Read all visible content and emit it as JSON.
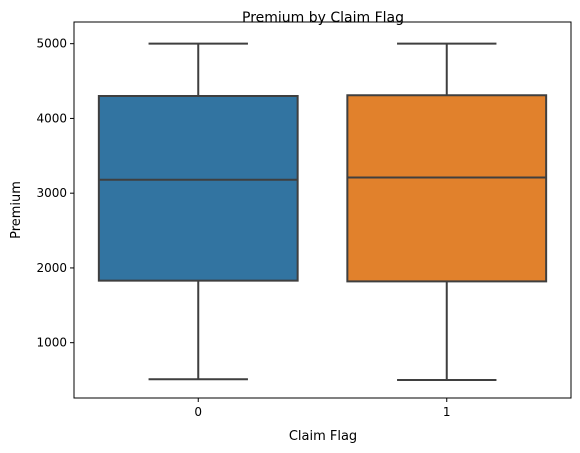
{
  "chart_data": {
    "type": "box",
    "title": "Premium by Claim Flag",
    "xlabel": "Claim Flag",
    "ylabel": "Premium",
    "categories": [
      "0",
      "1"
    ],
    "yticks": [
      "1000",
      "2000",
      "3000",
      "4000",
      "5000"
    ],
    "ylim": [
      260,
      5290
    ],
    "grid": false,
    "boxes": [
      {
        "category": "0",
        "min": 510,
        "q1": 1830,
        "median": 3180,
        "q3": 4300,
        "max": 5000,
        "color": "#3274a1"
      },
      {
        "category": "1",
        "min": 500,
        "q1": 1820,
        "median": 3210,
        "q3": 4310,
        "max": 5000,
        "color": "#e1812c"
      }
    ],
    "line_color": "#3f3f3f"
  }
}
